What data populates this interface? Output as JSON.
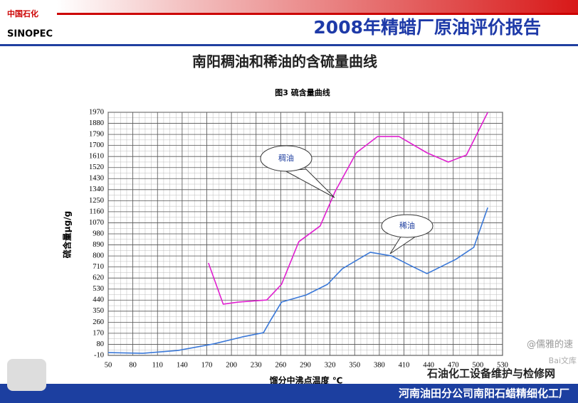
{
  "header": {
    "logo_text": "SINOPEC",
    "logo_cn": "中国石化",
    "title": "2008年精蜡厂原油评价报告"
  },
  "subtitle": "南阳稠油和稀油的含硫量曲线",
  "chart_data": {
    "type": "line",
    "title": "图3  硫含量曲线",
    "x_label": "馏分中沸点温度 ℃",
    "y_label": "硫含量μg/g",
    "xlim": [
      50,
      530
    ],
    "xticks": [
      50,
      80,
      110,
      140,
      170,
      200,
      230,
      260,
      290,
      320,
      350,
      380,
      410,
      440,
      470,
      500,
      530
    ],
    "ylim": [
      -10,
      1970
    ],
    "yticks": [
      -10,
      80,
      170,
      260,
      350,
      440,
      530,
      620,
      710,
      800,
      890,
      980,
      1070,
      1160,
      1250,
      1340,
      1430,
      1520,
      1610,
      1700,
      1790,
      1880,
      1970
    ],
    "grid": true,
    "series": [
      {
        "name": "稠油",
        "color": "#e020d0",
        "x": [
          172,
          190,
          208,
          243,
          261,
          282,
          308,
          326,
          352,
          378,
          404,
          438,
          464,
          486,
          512
        ],
        "values": [
          743,
          407,
          424,
          441,
          569,
          916,
          1044,
          1322,
          1640,
          1773,
          1773,
          1640,
          1565,
          1622,
          1970
        ]
      },
      {
        "name": "稀油",
        "color": "#3a78d8",
        "x": [
          50,
          92,
          135,
          178,
          213,
          239,
          248,
          261,
          291,
          317,
          335,
          369,
          395,
          417,
          438,
          473,
          495,
          512
        ],
        "values": [
          13,
          7,
          30,
          83,
          140,
          175,
          280,
          424,
          482,
          569,
          696,
          830,
          800,
          725,
          656,
          772,
          870,
          1194
        ]
      }
    ]
  },
  "footer": "河南油田分公司南阳石蜡精细化工厂",
  "watermarks": [
    "石油化工设备维护与检修网",
    "@儒雅的速",
    "Bai文库"
  ]
}
